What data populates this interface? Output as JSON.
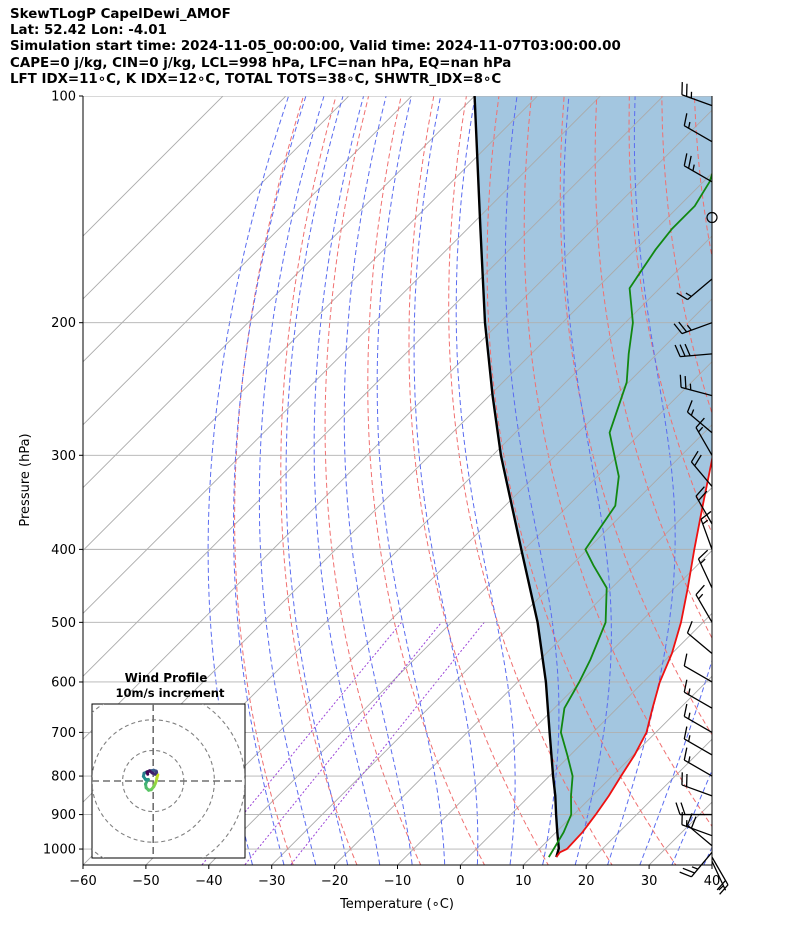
{
  "header": {
    "line1": "SkewTLogP CapelDewi_AMOF",
    "line2": "Lat: 52.42   Lon: -4.01",
    "line3": "Simulation start time: 2024-11-05_00:00:00, Valid time: 2024-11-07T03:00:00.00",
    "line4": "CAPE=0 j/kg, CIN=0 j/kg, LCL=998 hPa, LFC=nan hPa, EQ=nan hPa",
    "line5": "LFT IDX=11∘C, K IDX=12∘C, TOTAL TOTS=38∘C, SHWTR_IDX=8∘C"
  },
  "chart_data": {
    "type": "line",
    "xlabel": "Temperature (∘C)",
    "ylabel": "Pressure (hPa)",
    "xlim": [
      -60,
      40
    ],
    "ylim": [
      1050,
      100
    ],
    "y_scale": "log",
    "x_ticks": [
      -60,
      -50,
      -40,
      -30,
      -20,
      -10,
      0,
      10,
      20,
      30,
      40
    ],
    "x_tick_labels": [
      "−60",
      "−50",
      "−40",
      "−30",
      "−20",
      "−10",
      "0",
      "10",
      "20",
      "30",
      "40"
    ],
    "y_ticks": [
      100,
      200,
      300,
      400,
      500,
      600,
      700,
      800,
      900,
      1000
    ],
    "y_tick_labels": [
      "100",
      "200",
      "300",
      "400",
      "500",
      "600",
      "700",
      "800",
      "900",
      "1000"
    ],
    "grid": true,
    "colors": {
      "temperature": "#ee1111",
      "dewpoint": "#118811",
      "parcel": "#000000",
      "shade": "#a3c6e0",
      "dry_adiabats": "#f07070",
      "moist_adiabats": "#5a6cf0",
      "mixing_ratio": "#9b45d8",
      "isotherms": "#aaaaaa"
    },
    "temperature": {
      "p": [
        1025,
        1010,
        1000,
        950,
        900,
        850,
        800,
        750,
        700,
        650,
        600,
        550,
        500,
        450,
        400,
        350,
        300,
        250,
        220,
        200,
        180,
        175,
        160,
        150,
        140,
        130,
        120,
        100
      ],
      "T": [
        14,
        13.8,
        14.4,
        14.2,
        13.5,
        12.6,
        11.4,
        10.2,
        8.5,
        5.6,
        2.6,
        0,
        -3.5,
        -7.9,
        -13,
        -18.6,
        -25,
        -33.2,
        -38.4,
        -42.5,
        -48.2,
        -49.9,
        -49.3,
        -50.3,
        -52.5,
        -55,
        -58,
        -64
      ]
    },
    "dewpoint": {
      "p": [
        1025,
        1000,
        950,
        900,
        850,
        800,
        750,
        700,
        650,
        600,
        560,
        500,
        450,
        420,
        400,
        350,
        320,
        280,
        240,
        220,
        200,
        180,
        160,
        150,
        140,
        130,
        120,
        100
      ],
      "Td": [
        12.8,
        12.3,
        11.2,
        9.6,
        6.6,
        3.7,
        -0.5,
        -5.1,
        -8.4,
        -10.2,
        -12,
        -15.5,
        -20.8,
        -26.5,
        -30.3,
        -32.5,
        -36.6,
        -45,
        -50.3,
        -54.5,
        -58.8,
        -64.8,
        -66.8,
        -67.5,
        -67.5,
        -69,
        -71.8,
        -70.2
      ]
    },
    "parcel": {
      "p": [
        1025,
        998,
        950,
        900,
        850,
        800,
        700,
        600,
        500,
        400,
        300,
        250,
        200,
        150,
        100
      ],
      "T": [
        14,
        13,
        10.2,
        7.2,
        4.1,
        0.6,
        -6.9,
        -15.5,
        -26.3,
        -40.5,
        -58.7,
        -69.5,
        -82.3,
        -98,
        -120
      ]
    },
    "wind_barbs": {
      "p": [
        1038,
        1025,
        1010,
        990,
        960,
        900,
        850,
        800,
        750,
        700,
        650,
        600,
        550,
        500,
        450,
        400,
        370,
        330,
        300,
        280,
        250,
        220,
        200,
        175,
        145,
        130,
        115,
        103
      ],
      "speed": [
        5,
        20,
        25,
        20,
        15,
        20,
        20,
        15,
        15,
        15,
        15,
        10,
        10,
        15,
        15,
        15,
        20,
        20,
        15,
        15,
        25,
        30,
        25,
        15,
        0,
        25,
        15,
        25
      ],
      "direction_deg": [
        155,
        150,
        220,
        310,
        290,
        270,
        290,
        300,
        300,
        300,
        300,
        300,
        310,
        330,
        335,
        340,
        330,
        320,
        330,
        310,
        285,
        265,
        250,
        230,
        0,
        300,
        300,
        290
      ]
    },
    "hodograph": {
      "title": "Wind Profile",
      "subtitle": "10m/s increment",
      "u": [
        1.5,
        1.2,
        1.0,
        0.6,
        0.2,
        -0.6,
        -1.5,
        -2.3,
        -2.5,
        -2.0,
        -1.6,
        -2.5,
        -3.2,
        -3.0,
        -2.0,
        -1.0,
        0.2,
        1.0,
        1.1,
        0.6,
        -0.3,
        -1.2,
        -2.0,
        -1.8
      ],
      "v": [
        2.0,
        1.0,
        0.0,
        -1.0,
        -1.8,
        -2.8,
        -3.0,
        -2.2,
        -1.0,
        0.0,
        0.5,
        0.5,
        1.5,
        2.5,
        3.0,
        3.3,
        3.5,
        3.2,
        2.8,
        2.2,
        2.6,
        3.3,
        2.9,
        2.2
      ],
      "rings": [
        10,
        20,
        30
      ],
      "u_range": [
        -20,
        30
      ],
      "v_range": [
        -25,
        25
      ]
    }
  }
}
